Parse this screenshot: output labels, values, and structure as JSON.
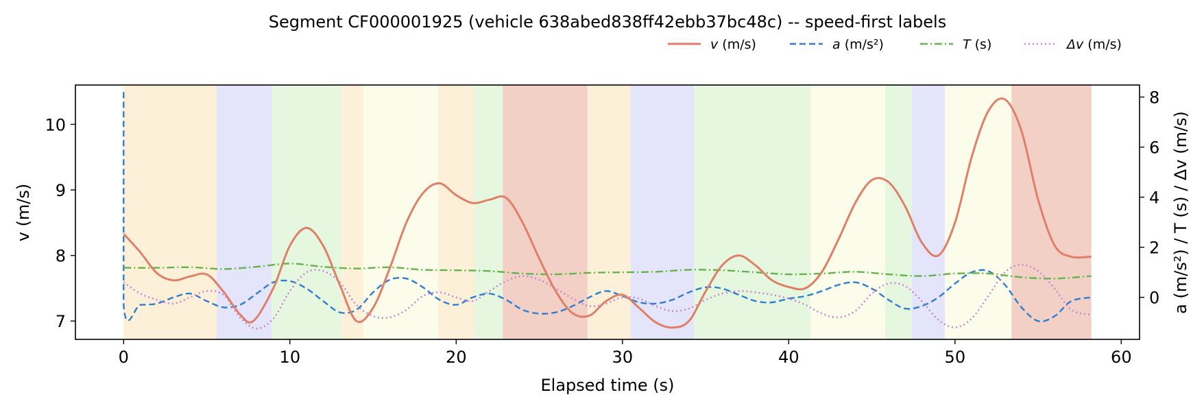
{
  "chart_data": {
    "type": "line",
    "title": "Segment CF000001925 (vehicle 638abed838ff42ebb37bc48c) -- speed-first labels",
    "xlabel": "Elapsed time (s)",
    "ylabel_left": "v (m/s)",
    "ylabel_right": "a (m/s²) / T (s) / Δv (m/s)",
    "xlim": [
      -2.9,
      61.1
    ],
    "ylim_left": [
      6.72,
      10.6
    ],
    "ylim_right": [
      -1.68,
      8.48
    ],
    "x_ticks": [
      0,
      10,
      20,
      30,
      40,
      50,
      60
    ],
    "y_left_ticks": [
      7,
      8,
      9,
      10
    ],
    "y_right_ticks": [
      0,
      2,
      4,
      6,
      8
    ],
    "legend_position": "top-right",
    "grid": false,
    "background_bands": [
      {
        "start": 0.0,
        "end": 5.6,
        "color": "#fdf0d8"
      },
      {
        "start": 5.6,
        "end": 8.9,
        "color": "#e4e4fb"
      },
      {
        "start": 8.9,
        "end": 13.1,
        "color": "#e6f7e0"
      },
      {
        "start": 13.1,
        "end": 14.4,
        "color": "#fdf0d8"
      },
      {
        "start": 14.4,
        "end": 18.9,
        "color": "#fbfce9"
      },
      {
        "start": 18.9,
        "end": 21.1,
        "color": "#fdf0d8"
      },
      {
        "start": 21.1,
        "end": 22.8,
        "color": "#e6f7e0"
      },
      {
        "start": 22.8,
        "end": 27.9,
        "color": "#f2d0c6"
      },
      {
        "start": 27.9,
        "end": 30.5,
        "color": "#fdf0d8"
      },
      {
        "start": 30.5,
        "end": 34.3,
        "color": "#e4e4fb"
      },
      {
        "start": 34.3,
        "end": 41.3,
        "color": "#e6f7e0"
      },
      {
        "start": 41.3,
        "end": 45.8,
        "color": "#fbfce9"
      },
      {
        "start": 45.8,
        "end": 47.4,
        "color": "#e6f7e0"
      },
      {
        "start": 47.4,
        "end": 49.4,
        "color": "#e4e4fb"
      },
      {
        "start": 49.4,
        "end": 53.4,
        "color": "#fbfce9"
      },
      {
        "start": 53.4,
        "end": 58.2,
        "color": "#f2d0c6"
      }
    ],
    "series": [
      {
        "name": "v (m/s)",
        "legend_label_italic": "v",
        "legend_label_rest": " (m/s)",
        "axis": "left",
        "color": "#e07f67",
        "style": "solid",
        "x": [
          0,
          1,
          2,
          3,
          4,
          5,
          6,
          7,
          7.8,
          9,
          10,
          11,
          12,
          13,
          14,
          15,
          16,
          17,
          18,
          19,
          20,
          21,
          22,
          23,
          24,
          25,
          26,
          27,
          28,
          29,
          30,
          31,
          32,
          33,
          34,
          35,
          36,
          37,
          38,
          39,
          40,
          41,
          42,
          43,
          44,
          45,
          46,
          47,
          48,
          49,
          50,
          51,
          52,
          53,
          54,
          55,
          56,
          57,
          58.2
        ],
        "y": [
          8.33,
          8.05,
          7.73,
          7.62,
          7.68,
          7.71,
          7.45,
          7.1,
          7.0,
          7.5,
          8.15,
          8.42,
          8.15,
          7.55,
          7.0,
          7.2,
          7.8,
          8.5,
          8.95,
          9.1,
          8.92,
          8.8,
          8.85,
          8.88,
          8.5,
          7.95,
          7.45,
          7.12,
          7.08,
          7.3,
          7.4,
          7.2,
          6.98,
          6.9,
          7.0,
          7.45,
          7.85,
          8.0,
          7.85,
          7.62,
          7.52,
          7.5,
          7.75,
          8.25,
          8.8,
          9.15,
          9.12,
          8.75,
          8.2,
          8.0,
          8.5,
          9.5,
          10.2,
          10.38,
          9.9,
          8.85,
          8.15,
          7.98,
          7.98
        ]
      },
      {
        "name": "a (m/s²)",
        "legend_label_italic": "a",
        "legend_label_rest": " (m/s²)",
        "axis": "right",
        "color": "#2e7dd0",
        "style": "dashed",
        "x": [
          0,
          0,
          0,
          1,
          2,
          3,
          4,
          5,
          6,
          7,
          8,
          9,
          10,
          11,
          12,
          13,
          14,
          15,
          16,
          17,
          18,
          19,
          20,
          21,
          22,
          23,
          24,
          25,
          26,
          27,
          28,
          29,
          30,
          31,
          32,
          33,
          34,
          35,
          36,
          37,
          38,
          39,
          40,
          41,
          42,
          43,
          44,
          45,
          46,
          47,
          48,
          49,
          50,
          51,
          52,
          53,
          54,
          55,
          56,
          57,
          58.2
        ],
        "y": [
          8.2,
          8.2,
          -0.3,
          -0.3,
          -0.25,
          0.0,
          0.15,
          -0.15,
          -0.4,
          -0.3,
          0.15,
          0.6,
          0.65,
          0.35,
          -0.15,
          -0.6,
          -0.5,
          0.2,
          0.7,
          0.75,
          0.4,
          -0.1,
          -0.3,
          0.0,
          0.15,
          -0.1,
          -0.5,
          -0.65,
          -0.6,
          -0.35,
          0.0,
          0.25,
          0.05,
          -0.2,
          -0.25,
          -0.1,
          0.2,
          0.4,
          0.35,
          0.1,
          -0.15,
          -0.2,
          -0.05,
          0.05,
          0.25,
          0.5,
          0.6,
          0.35,
          -0.1,
          -0.45,
          -0.35,
          0.0,
          0.55,
          1.0,
          1.05,
          0.5,
          -0.4,
          -0.95,
          -0.75,
          -0.15,
          0.0
        ]
      },
      {
        "name": "T (s)",
        "legend_label_italic": "T",
        "legend_label_rest": " (s)",
        "axis": "right",
        "color": "#63b44b",
        "style": "dashdot",
        "x": [
          0,
          2,
          4,
          6,
          8,
          10,
          12,
          14,
          16,
          18,
          20,
          22,
          24,
          26,
          28,
          30,
          32,
          34,
          36,
          38,
          40,
          42,
          44,
          46,
          48,
          50,
          52,
          54,
          56,
          58.2
        ],
        "y": [
          1.18,
          1.18,
          1.2,
          1.13,
          1.22,
          1.35,
          1.22,
          1.15,
          1.2,
          1.1,
          1.08,
          1.05,
          0.95,
          0.92,
          0.98,
          1.0,
          1.02,
          1.1,
          1.08,
          1.0,
          0.92,
          0.95,
          1.02,
          0.92,
          0.85,
          0.95,
          0.95,
          0.8,
          0.75,
          0.85
        ]
      },
      {
        "name": "Δv (m/s)",
        "legend_label_italic": "Δv",
        "legend_label_rest": " (m/s)",
        "axis": "right",
        "color": "#c986d6",
        "style": "dotted",
        "x": [
          0,
          1,
          2,
          3,
          4,
          5,
          6,
          7,
          8,
          9,
          10,
          11,
          12,
          13,
          14,
          15,
          16,
          17,
          18,
          19,
          20,
          21,
          22,
          23,
          24,
          25,
          26,
          27,
          28,
          29,
          30,
          31,
          32,
          33,
          34,
          35,
          36,
          37,
          38,
          39,
          40,
          41,
          42,
          43,
          44,
          45,
          46,
          47,
          48,
          49,
          50,
          51,
          52,
          53,
          54,
          55,
          56,
          57,
          58.2
        ],
        "y": [
          0.6,
          0.15,
          -0.1,
          -0.25,
          0.0,
          0.25,
          0.1,
          -0.8,
          -1.25,
          -0.85,
          0.25,
          1.0,
          1.05,
          0.6,
          -0.3,
          -0.75,
          -0.8,
          -0.5,
          0.05,
          0.2,
          0.0,
          -0.15,
          0.25,
          0.65,
          0.85,
          0.7,
          0.35,
          -0.05,
          -0.35,
          -0.25,
          0.0,
          -0.05,
          -0.35,
          -0.55,
          -0.45,
          -0.1,
          0.15,
          0.25,
          0.2,
          0.1,
          -0.05,
          -0.3,
          -0.65,
          -0.8,
          -0.55,
          0.15,
          0.55,
          0.45,
          -0.15,
          -0.9,
          -1.2,
          -0.85,
          0.05,
          1.0,
          1.3,
          1.05,
          0.35,
          -0.5,
          -0.7
        ]
      }
    ]
  }
}
